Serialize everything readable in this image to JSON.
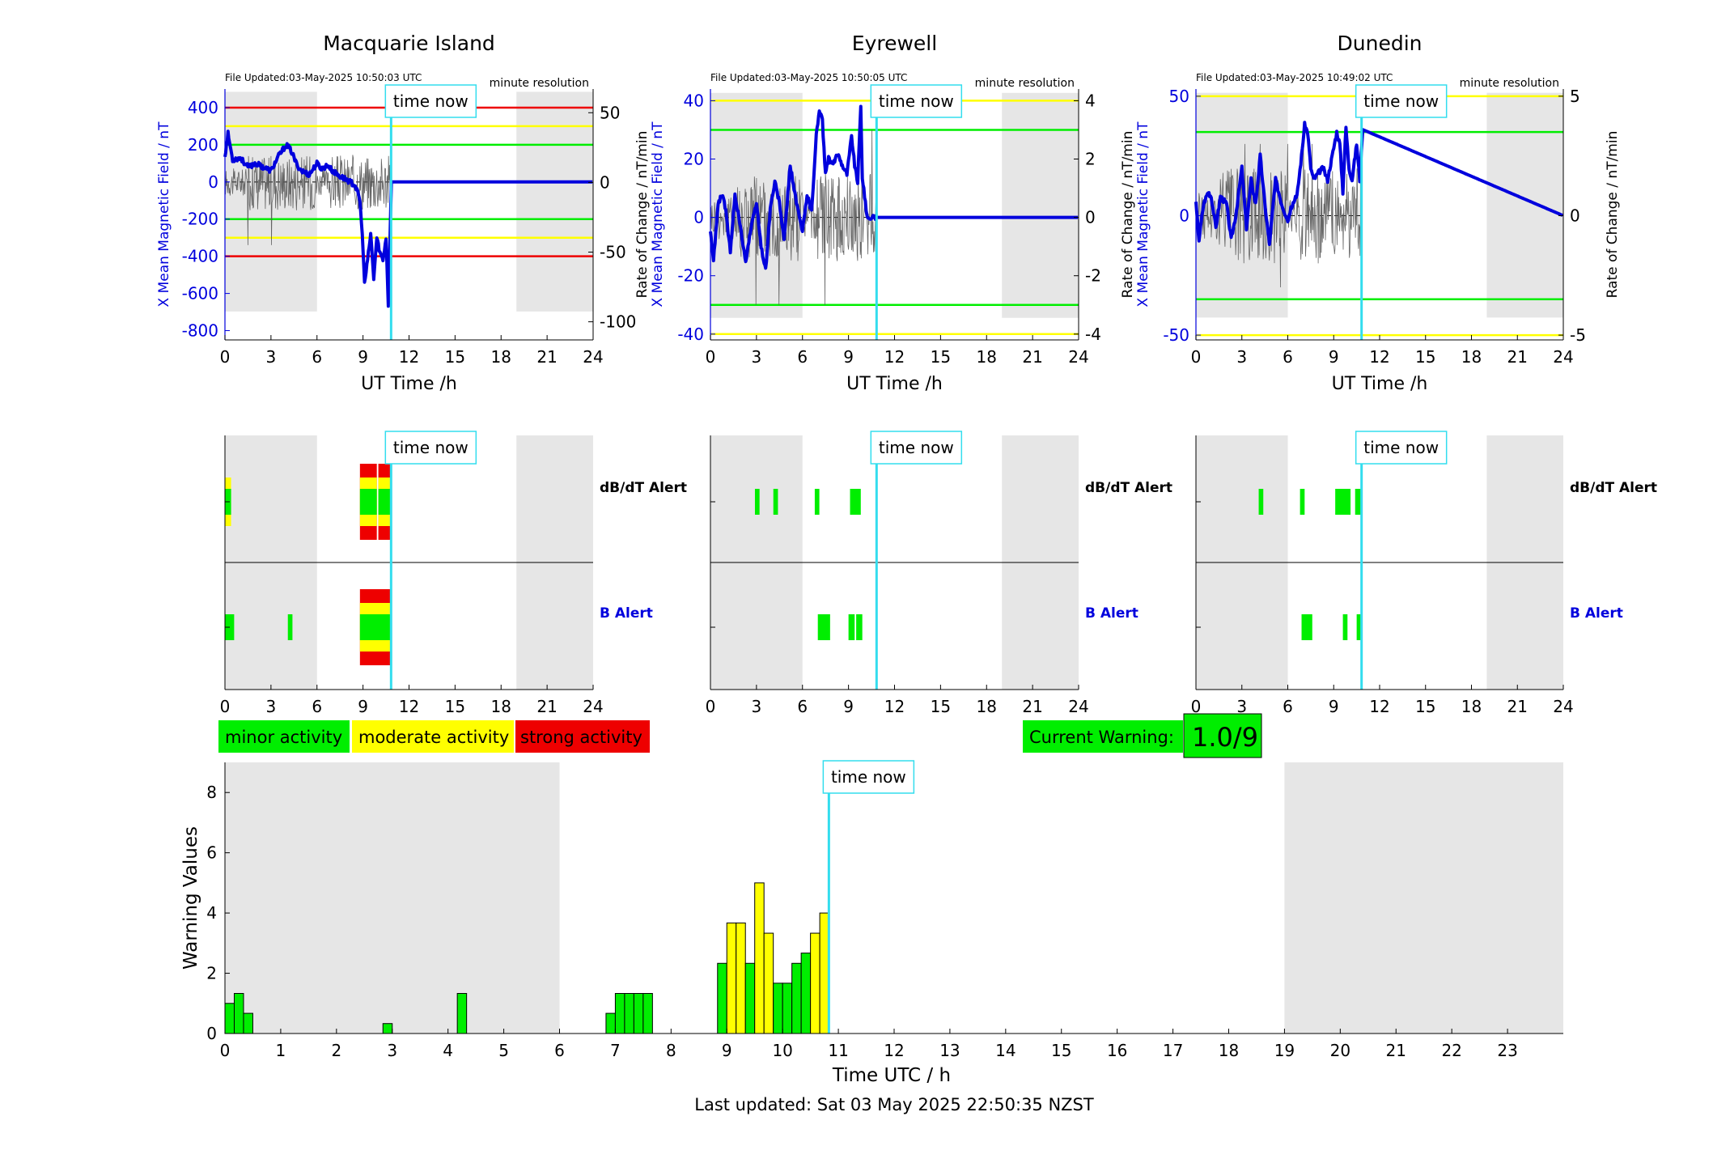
{
  "colors": {
    "night": "#e6e6e6",
    "mag": "#0000dd",
    "cyan": "#33ddee",
    "green": "#00ee00",
    "yellow": "#ffff00",
    "red": "#ee0000",
    "gray": "#888888",
    "black": "#000000"
  },
  "legend": {
    "minor": "minor activity",
    "moderate": "moderate activity",
    "strong": "strong activity"
  },
  "current_warning": {
    "label": "Current Warning:",
    "value": "1.0/9"
  },
  "footer": {
    "last_updated": "Last updated: Sat 03 May 2025 22:50:35 NZST"
  },
  "time_now_label": "time now",
  "chart_data": [
    {
      "type": "line",
      "station": "Macquarie Island",
      "file_updated": "File Updated:03-May-2025 10:50:03 UTC",
      "resolution": "minute resolution",
      "xlabel": "UT Time /h",
      "ylabel_left": "X Mean Magnetic Field / nT",
      "ylabel_right": "Rate of Change / nT/min",
      "xlim": [
        0,
        24
      ],
      "xticks": [
        0,
        3,
        6,
        9,
        12,
        15,
        18,
        21,
        24
      ],
      "ylim": [
        -850,
        500
      ],
      "yticks": [
        -800,
        -600,
        -400,
        -200,
        0,
        200,
        400
      ],
      "ylim_right": [
        -113,
        67
      ],
      "yticks_right": [
        -100,
        -50,
        0,
        50
      ],
      "night": [
        [
          0,
          6
        ],
        [
          19,
          24
        ]
      ],
      "time_now": 10.83,
      "thresholds": [
        {
          "y": 400,
          "color": "red"
        },
        {
          "y": 300,
          "color": "yellow"
        },
        {
          "y": 200,
          "color": "green"
        },
        {
          "y": -200,
          "color": "green"
        },
        {
          "y": -300,
          "color": "yellow"
        },
        {
          "y": -400,
          "color": "red"
        }
      ],
      "x_series": {
        "x": [
          0,
          0.2,
          0.5,
          1,
          1.5,
          2,
          2.5,
          3,
          3.5,
          4,
          4.3,
          4.7,
          5,
          5.5,
          6,
          6.3,
          6.7,
          7,
          7.5,
          8,
          8.5,
          8.8,
          9,
          9.1,
          9.3,
          9.5,
          9.7,
          9.9,
          10.1,
          10.3,
          10.5,
          10.65,
          10.85,
          11,
          24
        ],
        "values": [
          140,
          260,
          120,
          130,
          80,
          100,
          80,
          60,
          140,
          200,
          170,
          90,
          60,
          40,
          100,
          70,
          90,
          60,
          30,
          10,
          -20,
          -100,
          -350,
          -550,
          -420,
          -280,
          -520,
          -300,
          -380,
          -420,
          -300,
          -660,
          0,
          0,
          0
        ]
      },
      "rate_amplitude": 20,
      "rate_spike": 45
    },
    {
      "type": "line",
      "station": "Eyrewell",
      "file_updated": "File Updated:03-May-2025 10:50:05 UTC",
      "resolution": "minute resolution",
      "xlabel": "UT Time /h",
      "ylabel_left": "X Mean Magnetic Field / nT",
      "ylabel_right": "Rate of Change / nT/min",
      "xlim": [
        0,
        24
      ],
      "xticks": [
        0,
        3,
        6,
        9,
        12,
        15,
        18,
        21,
        24
      ],
      "ylim": [
        -42,
        44
      ],
      "yticks": [
        -40,
        -20,
        0,
        20,
        40
      ],
      "ylim_right": [
        -4.2,
        4.4
      ],
      "yticks_right": [
        -4,
        -2,
        0,
        2,
        4
      ],
      "night": [
        [
          0,
          6
        ],
        [
          19,
          24
        ]
      ],
      "time_now": 10.83,
      "thresholds": [
        {
          "y": 40,
          "color": "yellow"
        },
        {
          "y": 30,
          "color": "green"
        },
        {
          "y": -30,
          "color": "green"
        },
        {
          "y": -40,
          "color": "yellow"
        }
      ],
      "x_series": {
        "x": [
          0,
          0.2,
          0.5,
          0.8,
          1,
          1.3,
          1.6,
          2,
          2.3,
          2.6,
          3,
          3.3,
          3.6,
          3.9,
          4.2,
          4.5,
          4.8,
          5.2,
          5.6,
          6,
          6.3,
          6.6,
          6.9,
          7.1,
          7.3,
          7.5,
          7.7,
          8,
          8.3,
          8.6,
          8.9,
          9.2,
          9.4,
          9.6,
          9.8,
          9.9,
          10,
          10.2,
          24
        ],
        "values": [
          -5,
          -15,
          5,
          8,
          2,
          -12,
          8,
          -5,
          -15,
          -5,
          5,
          -10,
          -18,
          3,
          12,
          5,
          -8,
          18,
          5,
          -5,
          8,
          2,
          28,
          37,
          33,
          15,
          20,
          18,
          22,
          18,
          15,
          28,
          18,
          12,
          38,
          14,
          10,
          0,
          0
        ]
      },
      "rate_amplitude": 1.5,
      "rate_spike": 3
    },
    {
      "type": "line",
      "station": "Dunedin",
      "file_updated": "File Updated:03-May-2025 10:49:02 UTC",
      "resolution": "minute resolution",
      "xlabel": "UT Time /h",
      "ylabel_left": "X Mean Magnetic Field / nT",
      "ylabel_right": "Rate of Change / nT/min",
      "xlim": [
        0,
        24
      ],
      "xticks": [
        0,
        3,
        6,
        9,
        12,
        15,
        18,
        21,
        24
      ],
      "ylim": [
        -52,
        53
      ],
      "yticks": [
        -50,
        0,
        50
      ],
      "ylim_right": [
        -5.2,
        5.3
      ],
      "yticks_right": [
        -5,
        0,
        5
      ],
      "night": [
        [
          0,
          6
        ],
        [
          19,
          24
        ]
      ],
      "time_now": 10.82,
      "thresholds": [
        {
          "y": 50,
          "color": "yellow"
        },
        {
          "y": 35,
          "color": "green"
        },
        {
          "y": -35,
          "color": "green"
        },
        {
          "y": -50,
          "color": "yellow"
        }
      ],
      "x_series": {
        "x": [
          0,
          0.2,
          0.5,
          0.8,
          1,
          1.3,
          1.6,
          2,
          2.3,
          2.6,
          3,
          3.3,
          3.6,
          3.9,
          4.2,
          4.5,
          4.8,
          5.2,
          5.6,
          6,
          6.3,
          6.6,
          6.9,
          7.1,
          7.3,
          7.5,
          7.7,
          8,
          8.3,
          8.6,
          8.9,
          9.2,
          9.4,
          9.6,
          9.8,
          10,
          10.2,
          10.5,
          10.7,
          10.9,
          24
        ],
        "values": [
          5,
          -10,
          5,
          10,
          8,
          -5,
          8,
          5,
          -10,
          0,
          20,
          -5,
          15,
          5,
          25,
          5,
          -12,
          15,
          5,
          -2,
          5,
          8,
          25,
          38,
          35,
          20,
          15,
          18,
          20,
          15,
          25,
          35,
          30,
          10,
          37,
          20,
          15,
          30,
          15,
          36,
          0
        ]
      },
      "rate_amplitude": 2,
      "rate_spike": 3
    },
    {
      "type": "bar",
      "subtype": "alert-strip",
      "station": "Macquarie Island",
      "xlim": [
        0,
        24
      ],
      "xticks": [
        0,
        3,
        6,
        9,
        12,
        15,
        18,
        21,
        24
      ],
      "night": [
        [
          0,
          6
        ],
        [
          19,
          24
        ]
      ],
      "time_now": 10.83,
      "rows": [
        {
          "label": "dB/dT Alert",
          "label_color": "black",
          "segments": [
            [
              0,
              0.4,
              2
            ],
            [
              8.8,
              9.9,
              3
            ],
            [
              10,
              10.8,
              3
            ]
          ]
        },
        {
          "label": "B Alert",
          "label_color": "blue",
          "segments": [
            [
              0,
              0.6,
              1
            ],
            [
              4.1,
              4.4,
              1
            ],
            [
              8.8,
              10.8,
              3
            ]
          ]
        }
      ]
    },
    {
      "type": "bar",
      "subtype": "alert-strip",
      "station": "Eyrewell",
      "xlim": [
        0,
        24
      ],
      "xticks": [
        0,
        3,
        6,
        9,
        12,
        15,
        18,
        21,
        24
      ],
      "night": [
        [
          0,
          6
        ],
        [
          19,
          24
        ]
      ],
      "time_now": 10.83,
      "rows": [
        {
          "label": "dB/dT Alert",
          "label_color": "black",
          "segments": [
            [
              2.9,
              3.2,
              1
            ],
            [
              4.1,
              4.4,
              1
            ],
            [
              6.8,
              7.1,
              1
            ],
            [
              9.1,
              9.8,
              1
            ]
          ]
        },
        {
          "label": "B Alert",
          "label_color": "blue",
          "segments": [
            [
              7.0,
              7.8,
              1
            ],
            [
              9.0,
              9.4,
              1
            ],
            [
              9.5,
              9.9,
              1
            ]
          ]
        }
      ]
    },
    {
      "type": "bar",
      "subtype": "alert-strip",
      "station": "Dunedin",
      "xlim": [
        0,
        24
      ],
      "xticks": [
        0,
        3,
        6,
        9,
        12,
        15,
        18,
        21,
        24
      ],
      "night": [
        [
          0,
          6
        ],
        [
          19,
          24
        ]
      ],
      "time_now": 10.82,
      "rows": [
        {
          "label": "dB/dT Alert",
          "label_color": "black",
          "segments": [
            [
              4.1,
              4.4,
              1
            ],
            [
              6.8,
              7.1,
              1
            ],
            [
              9.1,
              10.1,
              1
            ],
            [
              10.4,
              10.8,
              1
            ]
          ]
        },
        {
          "label": "B Alert",
          "label_color": "blue",
          "segments": [
            [
              6.9,
              7.6,
              1
            ],
            [
              9.6,
              9.9,
              1
            ],
            [
              10.5,
              10.8,
              1
            ]
          ]
        }
      ]
    },
    {
      "type": "bar",
      "subtype": "warning-values",
      "xlabel": "Time UTC / h",
      "ylabel": "Warning Values",
      "xlim": [
        0,
        24
      ],
      "xticks": [
        0,
        1,
        2,
        3,
        4,
        5,
        6,
        7,
        8,
        9,
        10,
        11,
        12,
        13,
        14,
        15,
        16,
        17,
        18,
        19,
        20,
        21,
        22,
        23
      ],
      "ylim": [
        0,
        9
      ],
      "yticks": [
        0,
        2,
        4,
        6,
        8
      ],
      "night": [
        [
          0,
          6
        ],
        [
          19,
          24
        ]
      ],
      "time_now": 10.83,
      "bar_width": 0.1667,
      "bars": [
        {
          "x": 0.0,
          "v": 1.0,
          "level": "green"
        },
        {
          "x": 0.1667,
          "v": 1.33,
          "level": "green"
        },
        {
          "x": 0.3333,
          "v": 0.67,
          "level": "green"
        },
        {
          "x": 2.8333,
          "v": 0.33,
          "level": "green"
        },
        {
          "x": 4.1667,
          "v": 1.33,
          "level": "green"
        },
        {
          "x": 6.8333,
          "v": 0.67,
          "level": "green"
        },
        {
          "x": 7.0,
          "v": 1.33,
          "level": "green"
        },
        {
          "x": 7.1667,
          "v": 1.33,
          "level": "green"
        },
        {
          "x": 7.3333,
          "v": 1.33,
          "level": "green"
        },
        {
          "x": 7.5,
          "v": 1.33,
          "level": "green"
        },
        {
          "x": 8.8333,
          "v": 2.33,
          "level": "green"
        },
        {
          "x": 9.0,
          "v": 3.67,
          "level": "yellow"
        },
        {
          "x": 9.1667,
          "v": 3.67,
          "level": "yellow"
        },
        {
          "x": 9.3333,
          "v": 2.33,
          "level": "green"
        },
        {
          "x": 9.5,
          "v": 5.0,
          "level": "yellow"
        },
        {
          "x": 9.6667,
          "v": 3.33,
          "level": "yellow"
        },
        {
          "x": 9.8333,
          "v": 1.67,
          "level": "green"
        },
        {
          "x": 10.0,
          "v": 1.67,
          "level": "green"
        },
        {
          "x": 10.1667,
          "v": 2.33,
          "level": "green"
        },
        {
          "x": 10.3333,
          "v": 2.67,
          "level": "green"
        },
        {
          "x": 10.5,
          "v": 3.33,
          "level": "yellow"
        },
        {
          "x": 10.6667,
          "v": 4.0,
          "level": "yellow"
        }
      ]
    }
  ]
}
